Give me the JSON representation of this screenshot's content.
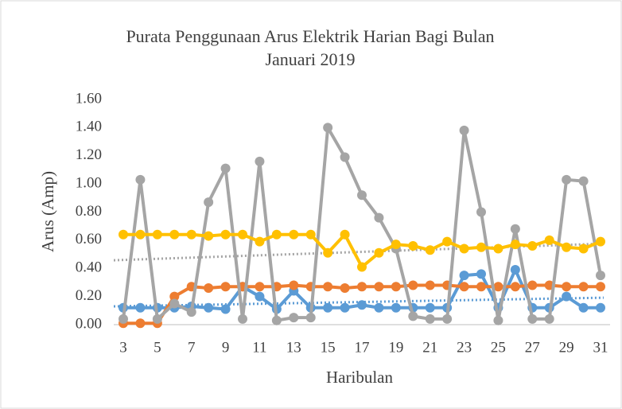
{
  "chart_data": {
    "type": "line",
    "title": "Purata Penggunaan Arus Elektrik Harian Bagi Bulan",
    "subtitle": "Januari 2019",
    "x_label": "Haribulan",
    "y_label": "Arus (Amp)",
    "x": [
      3,
      4,
      5,
      6,
      7,
      8,
      9,
      10,
      11,
      12,
      13,
      14,
      15,
      16,
      17,
      18,
      19,
      20,
      21,
      22,
      23,
      24,
      25,
      26,
      27,
      28,
      29,
      30,
      31
    ],
    "xlim": [
      3,
      31
    ],
    "xticks": [
      3,
      5,
      7,
      9,
      11,
      13,
      15,
      17,
      19,
      21,
      23,
      25,
      27,
      29,
      31
    ],
    "ylim": [
      0,
      1.6
    ],
    "yticks": [
      {
        "value": 0,
        "label": "0.00"
      },
      {
        "value": 0.2,
        "label": "0.20"
      },
      {
        "value": 0.4,
        "label": "0.40"
      },
      {
        "value": 0.6,
        "label": "0.60"
      },
      {
        "value": 0.8,
        "label": "0.80"
      },
      {
        "value": 1.0,
        "label": "1.00"
      },
      {
        "value": 1.2,
        "label": "1.20"
      },
      {
        "value": 1.4,
        "label": "1.40"
      },
      {
        "value": 1.6,
        "label": "1.60"
      }
    ],
    "grid": false,
    "series": [
      {
        "color": "#5b9bd5",
        "trendline": true,
        "values": [
          0.12,
          0.12,
          0.12,
          0.12,
          0.13,
          0.12,
          0.11,
          0.27,
          0.2,
          0.11,
          0.24,
          0.12,
          0.12,
          0.12,
          0.14,
          0.12,
          0.12,
          0.12,
          0.12,
          0.12,
          0.35,
          0.36,
          0.12,
          0.39,
          0.12,
          0.12,
          0.2,
          0.12,
          0.12
        ]
      },
      {
        "color": "#ed7d31",
        "trendline": false,
        "values": [
          0.01,
          0.01,
          0.01,
          0.2,
          0.27,
          0.26,
          0.27,
          0.27,
          0.27,
          0.27,
          0.28,
          0.27,
          0.27,
          0.26,
          0.27,
          0.27,
          0.27,
          0.28,
          0.28,
          0.28,
          0.27,
          0.27,
          0.27,
          0.27,
          0.28,
          0.28,
          0.27,
          0.27,
          0.27
        ]
      },
      {
        "color": "#a5a5a5",
        "trendline": true,
        "values": [
          0.04,
          1.03,
          0.04,
          0.15,
          0.09,
          0.87,
          1.11,
          0.04,
          1.16,
          0.03,
          0.05,
          0.05,
          1.4,
          1.19,
          0.92,
          0.76,
          0.54,
          0.06,
          0.04,
          0.04,
          1.38,
          0.8,
          0.03,
          0.68,
          0.04,
          0.04,
          1.03,
          1.02,
          0.35
        ]
      },
      {
        "color": "#ffc000",
        "trendline": false,
        "values": [
          0.64,
          0.64,
          0.64,
          0.64,
          0.64,
          0.63,
          0.64,
          0.64,
          0.59,
          0.64,
          0.64,
          0.64,
          0.51,
          0.64,
          0.41,
          0.51,
          0.57,
          0.56,
          0.53,
          0.59,
          0.54,
          0.55,
          0.54,
          0.57,
          0.56,
          0.6,
          0.55,
          0.54,
          0.59
        ]
      }
    ]
  }
}
